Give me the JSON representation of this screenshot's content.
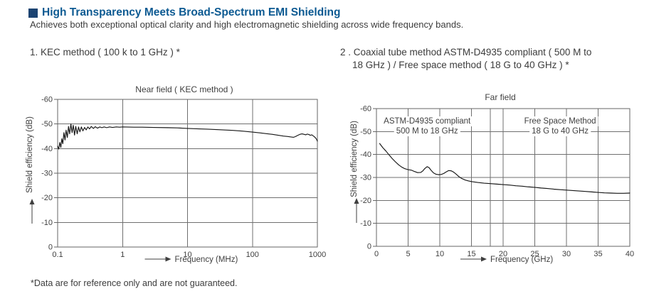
{
  "header": {
    "title": "High Transparency Meets Broad-Spectrum EMI Shielding",
    "subtitle": "Achieves both exceptional optical clarity and high electromagnetic shielding across wide frequency bands."
  },
  "methods": {
    "m1": "1. KEC method ( 100 k to 1 GHz ) *",
    "m2_line1": "2 . Coaxial tube method ASTM-D4935 compliant ( 500 M to",
    "m2_line2": "18 GHz ) / Free space method ( 18 G to 40 GHz ) *"
  },
  "footnote": "*Data are for reference only and are not guaranteed.",
  "colors": {
    "heading": "#0d5a92",
    "bullet": "#1c4472",
    "grid": "#6f6f6f",
    "border": "#666666",
    "curve": "#161616",
    "text": "#3f3f3f",
    "annotation_bg": "#ffffff"
  },
  "chart_data": [
    {
      "id": "near_field",
      "type": "line",
      "title": "Near field ( KEC method )",
      "xlabel": "Frequency (MHz)",
      "ylabel": "Shield efficiency (dB)",
      "x_scale": "log",
      "xlim": [
        0.1,
        1000
      ],
      "ylim_top_bottom": [
        -60,
        0
      ],
      "x_ticks": [
        0.1,
        1,
        10,
        100,
        1000
      ],
      "y_ticks": [
        -60,
        -50,
        -40,
        -30,
        -20,
        -10,
        0
      ],
      "grid": true,
      "legend": "none",
      "series": [
        {
          "name": "Shield efficiency (dB)",
          "points": [
            [
              0.1,
              -41
            ],
            [
              0.104,
              -39.8
            ],
            [
              0.108,
              -42.5
            ],
            [
              0.112,
              -40.5
            ],
            [
              0.116,
              -44
            ],
            [
              0.12,
              -42
            ],
            [
              0.125,
              -46.5
            ],
            [
              0.13,
              -43.5
            ],
            [
              0.135,
              -47.5
            ],
            [
              0.141,
              -44.5
            ],
            [
              0.147,
              -49
            ],
            [
              0.153,
              -46
            ],
            [
              0.16,
              -50
            ],
            [
              0.167,
              -46.5
            ],
            [
              0.174,
              -49.5
            ],
            [
              0.182,
              -45.5
            ],
            [
              0.19,
              -49
            ],
            [
              0.2,
              -46
            ],
            [
              0.21,
              -48.8
            ],
            [
              0.22,
              -46.8
            ],
            [
              0.232,
              -48.8
            ],
            [
              0.245,
              -47.2
            ],
            [
              0.26,
              -48.6
            ],
            [
              0.275,
              -47.6
            ],
            [
              0.292,
              -48.8
            ],
            [
              0.31,
              -48
            ],
            [
              0.33,
              -49
            ],
            [
              0.355,
              -48.2
            ],
            [
              0.38,
              -48.9
            ],
            [
              0.41,
              -48.3
            ],
            [
              0.445,
              -48.8
            ],
            [
              0.48,
              -48.5
            ],
            [
              0.52,
              -48.8
            ],
            [
              0.57,
              -48.5
            ],
            [
              0.63,
              -48.8
            ],
            [
              0.7,
              -48.6
            ],
            [
              0.8,
              -48.8
            ],
            [
              0.9,
              -48.7
            ],
            [
              1,
              -48.8
            ],
            [
              1.5,
              -48.7
            ],
            [
              2,
              -48.7
            ],
            [
              3,
              -48.6
            ],
            [
              5,
              -48.5
            ],
            [
              7,
              -48.4
            ],
            [
              10,
              -48.2
            ],
            [
              15,
              -48
            ],
            [
              20,
              -47.9
            ],
            [
              30,
              -47.7
            ],
            [
              50,
              -47.4
            ],
            [
              70,
              -47.1
            ],
            [
              100,
              -46.7
            ],
            [
              130,
              -46.4
            ],
            [
              160,
              -46.1
            ],
            [
              200,
              -45.8
            ],
            [
              250,
              -45.4
            ],
            [
              300,
              -45.1
            ],
            [
              350,
              -44.9
            ],
            [
              400,
              -44.7
            ],
            [
              430,
              -44.6
            ],
            [
              460,
              -44.9
            ],
            [
              500,
              -45.4
            ],
            [
              540,
              -45.8
            ],
            [
              580,
              -46
            ],
            [
              620,
              -45.8
            ],
            [
              660,
              -45.6
            ],
            [
              700,
              -45.9
            ],
            [
              740,
              -45.7
            ],
            [
              780,
              -45.4
            ],
            [
              820,
              -45.6
            ],
            [
              860,
              -45.2
            ],
            [
              900,
              -44.8
            ],
            [
              940,
              -44.3
            ],
            [
              970,
              -43.8
            ],
            [
              1000,
              -43
            ]
          ]
        }
      ]
    },
    {
      "id": "far_field",
      "type": "line",
      "title": "Far field",
      "xlabel": "Frequency (GHz)",
      "ylabel": "Shield efficiency (dB)",
      "x_scale": "linear",
      "xlim": [
        0,
        40
      ],
      "ylim_top_bottom": [
        -60,
        0
      ],
      "x_ticks": [
        0,
        5,
        10,
        15,
        20,
        25,
        30,
        35,
        40
      ],
      "y_ticks": [
        -60,
        -50,
        -40,
        -30,
        -20,
        -10,
        0
      ],
      "extra_vlines": [
        18
      ],
      "grid": true,
      "legend": "none",
      "annotations": [
        {
          "line1": "ASTM-D4935 compliant",
          "line2": "500 M to 18 GHz",
          "x_center": 8
        },
        {
          "line1": "Free Space Method",
          "line2": "18 G to 40 GHz",
          "x_center": 29
        }
      ],
      "series": [
        {
          "name": "Shield efficiency (dB)",
          "points": [
            [
              0.5,
              -44.8
            ],
            [
              1,
              -43
            ],
            [
              1.5,
              -41.5
            ],
            [
              2,
              -39.8
            ],
            [
              2.5,
              -38.2
            ],
            [
              3,
              -36.8
            ],
            [
              3.5,
              -35.5
            ],
            [
              4,
              -34.5
            ],
            [
              4.5,
              -33.8
            ],
            [
              5,
              -33.4
            ],
            [
              5.5,
              -33.2
            ],
            [
              6,
              -32.6
            ],
            [
              6.5,
              -32.1
            ],
            [
              7,
              -32.2
            ],
            [
              7.3,
              -32.8
            ],
            [
              7.6,
              -33.8
            ],
            [
              8,
              -34.7
            ],
            [
              8.3,
              -34.3
            ],
            [
              8.6,
              -33.2
            ],
            [
              9,
              -32
            ],
            [
              9.4,
              -31.4
            ],
            [
              9.8,
              -31.2
            ],
            [
              10.2,
              -31.3
            ],
            [
              10.6,
              -31.7
            ],
            [
              11,
              -32.4
            ],
            [
              11.4,
              -33
            ],
            [
              11.8,
              -32.9
            ],
            [
              12.2,
              -32.3
            ],
            [
              12.6,
              -31.4
            ],
            [
              13,
              -30.4
            ],
            [
              13.5,
              -29.5
            ],
            [
              14,
              -28.9
            ],
            [
              14.5,
              -28.5
            ],
            [
              15,
              -28.2
            ],
            [
              16,
              -27.8
            ],
            [
              17,
              -27.5
            ],
            [
              18,
              -27.3
            ],
            [
              19,
              -27.1
            ],
            [
              20,
              -26.9
            ],
            [
              21,
              -26.7
            ],
            [
              22,
              -26.4
            ],
            [
              23,
              -26.2
            ],
            [
              24,
              -25.9
            ],
            [
              25,
              -25.7
            ],
            [
              26,
              -25.4
            ],
            [
              27,
              -25.2
            ],
            [
              28,
              -24.9
            ],
            [
              29,
              -24.7
            ],
            [
              30,
              -24.5
            ],
            [
              31,
              -24.3
            ],
            [
              32,
              -24.1
            ],
            [
              33,
              -23.9
            ],
            [
              34,
              -23.7
            ],
            [
              35,
              -23.5
            ],
            [
              36,
              -23.3
            ],
            [
              37,
              -23.2
            ],
            [
              38,
              -23.1
            ],
            [
              39,
              -23.1
            ],
            [
              40,
              -23.2
            ]
          ]
        }
      ]
    }
  ]
}
